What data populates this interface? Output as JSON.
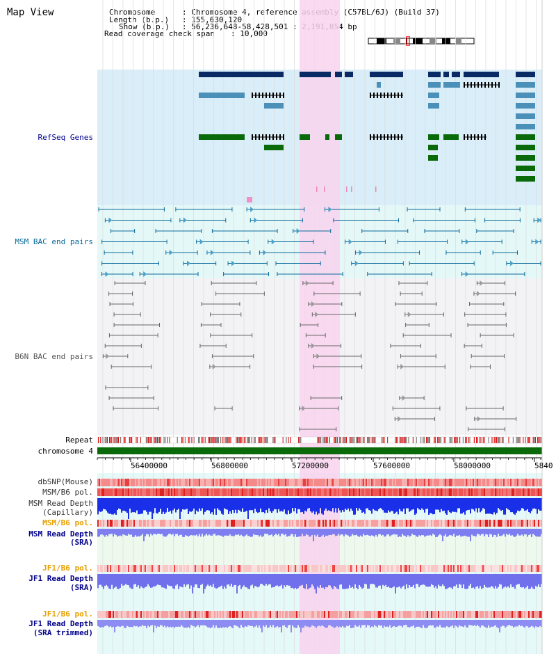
{
  "title": "Map View",
  "header": {
    "chromosome_label": "Chromosome",
    "chromosome_value": ": Chromosome 4, reference assembly (C57BL/6J) (Build 37)",
    "length_label": "Length (b.p.)",
    "length_value": ": 155,630,120",
    "show_label": "Show (b.p.)",
    "show_value": ": 56,236,648-58,428,501 : 2,191,854 bp",
    "coverage_label": "Read coverage check span",
    "coverage_value": ": 10,000"
  },
  "tracks": {
    "refseq": "RefSeq Genes",
    "msm_bac": "MSM BAC end pairs",
    "b6n_bac": "B6N BAC end pairs",
    "repeat": "Repeat",
    "chromosome": "chromosome 4",
    "dbsnp": "dbSNP(Mouse)",
    "msm_b6_pol_1": "MSM/B6 pol.",
    "msm_read_depth_cap_1": "MSM Read Depth",
    "msm_read_depth_cap_2": "(Capillary)",
    "msm_b6_pol_2": "MSM/B6 pol.",
    "msm_read_depth_sra_1": "MSM Read Depth",
    "msm_read_depth_sra_2": "(SRA)",
    "jf1_b6_pol_1": "JF1/B6 pol.",
    "jf1_read_depth_1": "JF1 Read Depth",
    "jf1_read_depth_2": "(SRA)",
    "jf1_b6_pol_2": "JF1/B6 pol.",
    "jf1_read_depth_trim_1": "JF1 Read Depth",
    "jf1_read_depth_trim_2": "(SRA trimmed)"
  },
  "axis_ticks": [
    "56400000",
    "56800000",
    "57200000",
    "57600000",
    "58000000",
    "5840"
  ],
  "colors": {
    "refseq_bg": "#d9eef8",
    "msm_bg": "#e5f8f8",
    "b6n_bg": "#f3f3f6",
    "highlight": "#f8d4ee",
    "gene_dark": "#0a2a66",
    "gene_light": "#4a90b8",
    "gene_green": "#0a6a0a",
    "msm_label": "#0a6a9a",
    "refseq_label": "#00008b",
    "orange_label": "#e8a000",
    "depth_blue": "#2233dd"
  }
}
